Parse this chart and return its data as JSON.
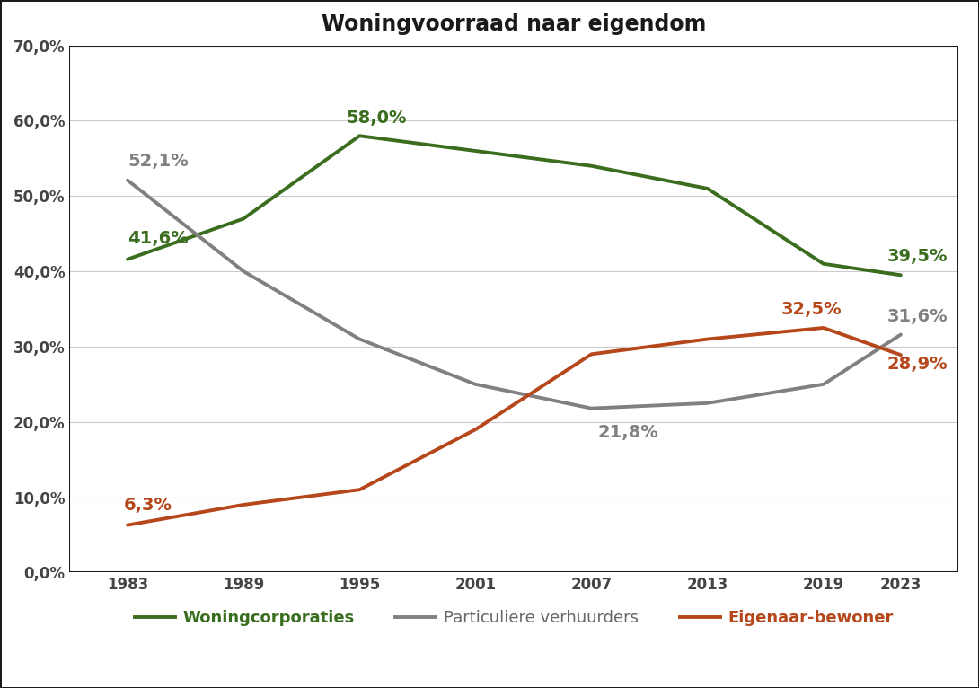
{
  "title": "Woningvoorraad naar eigendom",
  "years": [
    1983,
    1989,
    1995,
    2001,
    2007,
    2013,
    2019,
    2023
  ],
  "woningcorporaties": [
    41.6,
    47.0,
    58.0,
    56.0,
    54.0,
    51.0,
    41.0,
    39.5
  ],
  "particuliere_verhuurders": [
    52.1,
    40.0,
    31.0,
    25.0,
    21.8,
    22.5,
    25.0,
    31.6
  ],
  "eigenaar_bewoner": [
    6.3,
    9.0,
    11.0,
    19.0,
    29.0,
    31.0,
    32.5,
    28.9
  ],
  "color_woningcorporaties": "#3a6e1e",
  "color_particuliere": "#808080",
  "color_eigenaar": "#b5471b",
  "label_woningcorporaties": "Woningcorporaties",
  "label_particuliere": "Particuliere verhuurders",
  "label_eigenaar": "Eigenaar-bewoner",
  "ylim": [
    0.0,
    70.0
  ],
  "yticks": [
    0.0,
    10.0,
    20.0,
    30.0,
    40.0,
    50.0,
    60.0,
    70.0
  ],
  "background_color": "#ffffff",
  "outer_border_color": "#1a1a1a",
  "grid_color": "#cccccc",
  "title_fontsize": 17,
  "label_fontsize": 13,
  "tick_fontsize": 12,
  "annotation_fontsize": 14,
  "line_width": 2.8,
  "xlim_left": 1980,
  "xlim_right": 2026
}
